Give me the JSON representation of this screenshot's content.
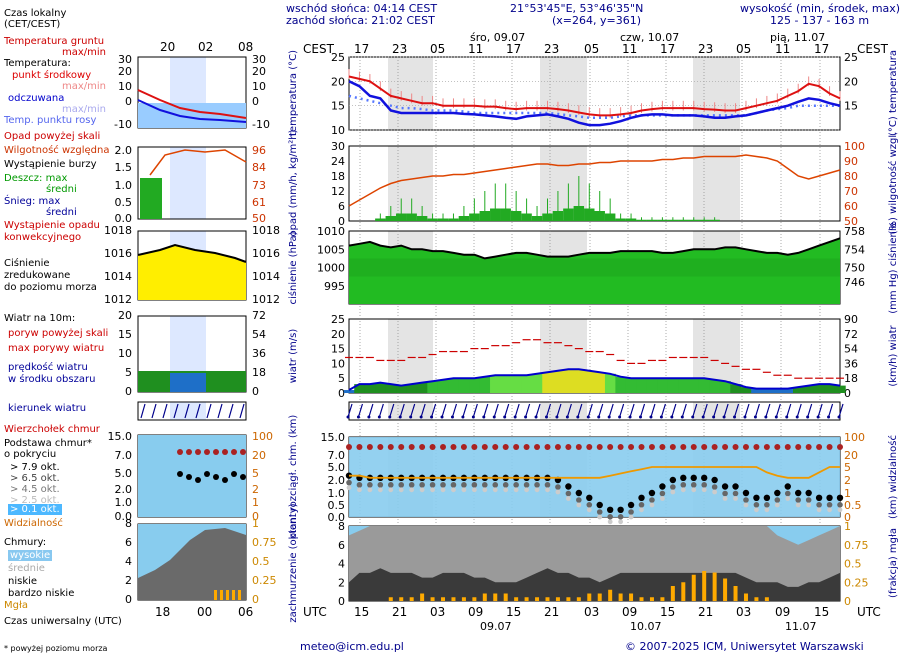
{
  "header": {
    "sunrise": "wschód słońca: 04:14 CEST",
    "sunset": "zachód słońca: 21:02 CEST",
    "coords": "21°53'45\"E, 53°46'35\"N",
    "grid": "(x=264, y=361)",
    "height_label": "wysokość (min, środek, max)",
    "height_values": "125 - 137 - 163 m"
  },
  "left_panel": {
    "local_time_title": "Czas lokalny",
    "local_time_sub": "(CET/CEST)",
    "local_hours": [
      "20",
      "02",
      "08"
    ],
    "utc_hours": [
      "18",
      "00",
      "06"
    ],
    "soil_temp": "Temperatura gruntu",
    "soil_temp_sub": "max/min",
    "temp_title": "Temperatura:",
    "temp_center": "punkt środkowy",
    "temp_maxmin": "max/min",
    "temp_felt": "odczuwana",
    "temp_felt_maxmin": "max/min",
    "temp_dew": "Temp. punktu rosy",
    "precip_above": "Opad powyżej skali",
    "humidity": "Wilgotność względna",
    "storm": "Wystąpienie burzy",
    "rain_max": "Deszcz: max",
    "rain_mid": "średni",
    "snow_max": "Śnieg: max",
    "snow_mid": "średni",
    "precip_conv": "Wystąpienie opadu",
    "precip_conv2": "konwekcyjnego",
    "pressure1": "Ciśnienie",
    "pressure2": "zredukowane",
    "pressure3": "do poziomu morza",
    "wind_title": "Wiatr na 10m:",
    "gust_above": "poryw powyżej skali",
    "gust_max": "max porywy wiatru",
    "wind_mid": "prędkość wiatru",
    "wind_mid2": "w środku obszaru",
    "wind_dir": "kierunek wiatru",
    "cloud_top": "Wierzchołek chmur",
    "cloud_base": "Podstawa chmur*",
    "cloud_base2": "o pokryciu",
    "okt": [
      "> 7.9 okt.",
      "> 6.5 okt.",
      "> 4.5 okt.",
      "> 2.5 okt.",
      "> 0.1 okt."
    ],
    "visibility": "Widzialność",
    "clouds": "Chmury:",
    "cl_high": "wysokie",
    "cl_mid": "średnie",
    "cl_low": "niskie",
    "cl_vlow": "bardzo niskie",
    "fog": "Mgła",
    "utc_title": "Czas uniwersalny (UTC)",
    "footnote": "* powyżej poziomu morza"
  },
  "main": {
    "cest": "CEST",
    "utc": "UTC",
    "days_top": [
      "śro, 09.07",
      "czw, 10.07",
      "pią, 11.07"
    ],
    "hours_top": [
      "17",
      "23",
      "05",
      "11",
      "17",
      "23",
      "05",
      "11",
      "17",
      "23",
      "05",
      "11",
      "17"
    ],
    "hours_bottom": [
      "15",
      "21",
      "03",
      "09",
      "15",
      "21",
      "03",
      "09",
      "15",
      "21",
      "03",
      "09",
      "15"
    ],
    "days_bottom": [
      "09.07",
      "10.07",
      "11.07"
    ],
    "y_temp_left": "temperatura (°C)",
    "y_temp_right": "(°C) temperatura",
    "y_precip_left": "opad (mm/h, kg/m²h)",
    "y_precip_right": "(%) wilgotność wzgl.",
    "y_press_left": "ciśnienie (hPa)",
    "y_press_right": "(mm Hg) ciśnienie",
    "y_wind_left": "wiatr (m/s)",
    "y_wind_right": "(km/h) wiatr",
    "y_cloud_left": "pion. rozciągł. chm. (km)",
    "y_cloud_right": "(km) widzialność",
    "y_cov_left": "zachmurzenie (oktanty)",
    "y_cov_right": "(frakcja) mgła"
  },
  "footer": {
    "email": "meteo@icm.edu.pl",
    "copyright": "© 2007-2025 ICM, Uniwersytet Warszawski"
  },
  "colors": {
    "temp": "#dd1111",
    "felt": "#1111dd",
    "dew": "#5577ff",
    "humidity": "#dd4400",
    "rain": "#22aa22",
    "pressure": "#22bb22",
    "wind": "#22aa22",
    "cloud_sky": "#88ccee",
    "axis": "#00008b"
  },
  "chart_data": [
    {
      "type": "line",
      "name": "temperature",
      "ylim": [
        10,
        25
      ],
      "ylim_left_mini": [
        -10,
        30
      ],
      "series": [
        {
          "name": "punkt środkowy",
          "values": [
            21,
            20.5,
            20,
            18.5,
            17,
            16.5,
            16,
            15.5,
            15.5,
            15,
            15,
            15,
            15,
            14.8,
            14.8,
            14.5,
            14.3,
            14.5,
            14.5,
            14.5,
            14.3,
            14,
            13.6,
            13.2,
            13,
            13,
            13.2,
            13.5,
            14,
            14.3,
            14.5,
            14.5,
            14.5,
            14.5,
            14.3,
            14.2,
            14,
            14,
            14.5,
            15,
            15.5,
            16,
            17,
            18,
            19.5,
            19,
            17.5,
            16.5
          ]
        },
        {
          "name": "odczuwana",
          "values": [
            20,
            19,
            17,
            16.5,
            14,
            13.5,
            13.5,
            13.5,
            13.5,
            13.5,
            13.5,
            13.3,
            13.2,
            13,
            12.8,
            12.5,
            12.3,
            12.8,
            13,
            13.2,
            12.8,
            12.3,
            11.5,
            11,
            11,
            11.3,
            11.8,
            12.5,
            13,
            13.2,
            13.2,
            13,
            13,
            13,
            12.8,
            12.5,
            12.5,
            12.8,
            13,
            13.5,
            14,
            14.5,
            15,
            15.8,
            16.5,
            16.2,
            15.5,
            15
          ]
        },
        {
          "name": "Temp. punktu rosy",
          "values": [
            17,
            16.5,
            16,
            15.5,
            15,
            14.5,
            14.5,
            14.3,
            14,
            14,
            14,
            13.8,
            13.5,
            13.5,
            13.5,
            13.5,
            13.5,
            13.5,
            13.5,
            13.5,
            13.3,
            13,
            12.8,
            12.5,
            12.5,
            12.5,
            12.8,
            13,
            13,
            13,
            13,
            13,
            13,
            13,
            13,
            13,
            13,
            13,
            13,
            13.5,
            14,
            14.3,
            14.5,
            15,
            15,
            15,
            15,
            15
          ]
        }
      ]
    },
    {
      "type": "bar",
      "name": "precipitation",
      "ylim": [
        0,
        30
      ],
      "humidity_ylim": [
        50,
        100
      ],
      "humidity": [
        60,
        64,
        68,
        72,
        75,
        77,
        78,
        79,
        80,
        80,
        81,
        81,
        82,
        83,
        84,
        85,
        86,
        87,
        88,
        88,
        87,
        87,
        88,
        88,
        89,
        89,
        90,
        90,
        90,
        90,
        91,
        91,
        92,
        92,
        93,
        93,
        93,
        93,
        94,
        93,
        92,
        90,
        85,
        80,
        78,
        80,
        82,
        84
      ],
      "rain_mid": [
        0,
        0,
        0,
        1,
        2,
        3,
        3,
        2,
        1,
        1,
        1,
        2,
        3,
        4,
        5,
        5,
        4,
        3,
        2,
        3,
        4,
        5,
        6,
        5,
        4,
        3,
        1,
        1,
        0.5,
        0.5,
        0.5,
        0.5,
        0.5,
        0.5,
        0.5,
        0.5,
        0,
        0,
        0,
        0,
        0,
        0,
        0,
        0,
        0,
        0,
        0,
        0
      ]
    },
    {
      "type": "area",
      "name": "pressure",
      "ylim": [
        990,
        1010
      ],
      "ylim_right": [
        746,
        758
      ],
      "values": [
        1006,
        1006.5,
        1007,
        1006,
        1005.5,
        1006,
        1005,
        1005,
        1004.5,
        1004.5,
        1004,
        1003.5,
        1003.5,
        1002.5,
        1003,
        1003.5,
        1004,
        1004,
        1003.5,
        1003,
        1003,
        1003,
        1003.5,
        1004,
        1004,
        1004,
        1004.5,
        1004.5,
        1004.5,
        1004.5,
        1004,
        1004,
        1004.5,
        1005,
        1005,
        1005,
        1005.5,
        1005.5,
        1005,
        1004.5,
        1004,
        1004,
        1003.5,
        1004,
        1005,
        1006,
        1007,
        1008
      ]
    },
    {
      "type": "area",
      "name": "wind",
      "ylim": [
        0,
        25
      ],
      "ylim_right": [
        0,
        90
      ],
      "values": [
        1,
        3,
        3,
        3.5,
        3,
        2.5,
        3,
        3.5,
        4,
        4.5,
        5,
        5,
        5,
        5.5,
        6,
        6,
        6,
        6,
        6.5,
        7,
        7.5,
        8,
        8,
        7.5,
        7,
        6.5,
        5.5,
        5,
        5,
        5,
        5,
        5,
        5,
        5,
        5,
        4.5,
        4,
        3,
        2,
        1.5,
        1.5,
        1.5,
        1.5,
        2,
        2.5,
        3,
        3,
        2.5
      ],
      "gust": [
        12,
        12,
        12,
        11,
        11,
        11,
        12,
        12,
        13,
        14,
        14,
        14,
        15,
        15,
        16,
        16,
        17,
        18,
        18,
        17,
        17,
        16,
        15,
        14,
        14,
        13,
        11,
        10,
        10,
        11,
        11,
        12,
        12,
        12,
        12,
        11,
        10,
        9,
        8,
        8,
        7,
        6,
        6,
        5,
        5,
        5,
        5,
        5
      ]
    },
    {
      "type": "scatter",
      "name": "cloud_base",
      "ylim": [
        0,
        15
      ],
      "visibility_ylim": [
        0,
        100
      ],
      "top": [
        9,
        8.5,
        8.5,
        8.5,
        8.5,
        8.5,
        8.5,
        8.5,
        8.5,
        8.5,
        8.5,
        8.5,
        8.5,
        8.5,
        8.5,
        8.5,
        8.5,
        8.5,
        8.5,
        8.5,
        8.5,
        8.5,
        8.5,
        8.5,
        8.5,
        8.5,
        8.5,
        8.5,
        8.5,
        8.5,
        8.5,
        8.5,
        8.5,
        8.5,
        8.5,
        8.5,
        8.5,
        8.5,
        8.5,
        8.5,
        8.5,
        8.5,
        8.5,
        8.5,
        8.5,
        8.5,
        8.5,
        8.5
      ],
      "base": [
        3,
        2.5,
        2.5,
        2.5,
        2.5,
        2.5,
        2.5,
        2.5,
        2.5,
        2.5,
        2.5,
        2.5,
        2.5,
        2.5,
        2.5,
        2.5,
        2.5,
        2.5,
        2.5,
        2.5,
        2,
        1.5,
        1,
        0.8,
        0.5,
        0.3,
        0.3,
        0.5,
        0.8,
        1,
        1.5,
        2,
        2.5,
        2.5,
        2.5,
        2,
        1.5,
        1.5,
        1,
        0.8,
        0.8,
        1,
        1.5,
        1,
        1,
        0.8,
        0.8,
        0.8
      ],
      "visibility": [
        12,
        12,
        10,
        10,
        10,
        10,
        10,
        10,
        10,
        10,
        10,
        10,
        10,
        10,
        10,
        10,
        10,
        10,
        10,
        10,
        10,
        10,
        10,
        10,
        10,
        12,
        14,
        16,
        18,
        20,
        20,
        20,
        20,
        20,
        20,
        20,
        20,
        20,
        20,
        20,
        15,
        12,
        10,
        10,
        10,
        15,
        20,
        20
      ]
    },
    {
      "type": "area",
      "name": "cloud_cover",
      "ylim": [
        0,
        8
      ],
      "fog_ylim": [
        0,
        1
      ],
      "total": [
        7,
        7.5,
        8,
        8,
        8,
        8,
        8,
        8,
        8,
        8,
        8,
        8,
        8,
        8,
        8,
        8,
        8,
        8,
        8,
        8,
        8,
        8,
        8,
        8,
        8,
        8,
        8,
        8,
        8,
        8,
        8,
        8,
        8,
        8,
        8,
        8,
        8,
        8,
        8,
        8,
        8,
        7,
        6.5,
        6,
        6.5,
        7,
        7.5,
        8
      ],
      "low": [
        2,
        3,
        3,
        3.5,
        3,
        3,
        3,
        2.5,
        2.5,
        3,
        3,
        3,
        2.5,
        2.5,
        2,
        2,
        2,
        2.5,
        3,
        3.5,
        3,
        3,
        2.5,
        2.5,
        2,
        2.5,
        3,
        3,
        3,
        3,
        3,
        3,
        3,
        3,
        3,
        3,
        3,
        3,
        2.5,
        2,
        2,
        2,
        1.5,
        1.5,
        2,
        2,
        2.5,
        3
      ],
      "fog": [
        0,
        0,
        0,
        0,
        0.05,
        0.05,
        0.05,
        0.1,
        0.05,
        0.05,
        0.05,
        0.05,
        0.05,
        0.1,
        0.1,
        0.1,
        0.05,
        0.05,
        0.05,
        0.05,
        0.05,
        0.05,
        0.05,
        0.1,
        0.1,
        0.15,
        0.1,
        0.1,
        0.05,
        0.05,
        0.05,
        0.2,
        0.25,
        0.35,
        0.4,
        0.38,
        0.3,
        0.2,
        0.1,
        0.05,
        0.05,
        0,
        0,
        0,
        0,
        0,
        0,
        0
      ]
    }
  ]
}
